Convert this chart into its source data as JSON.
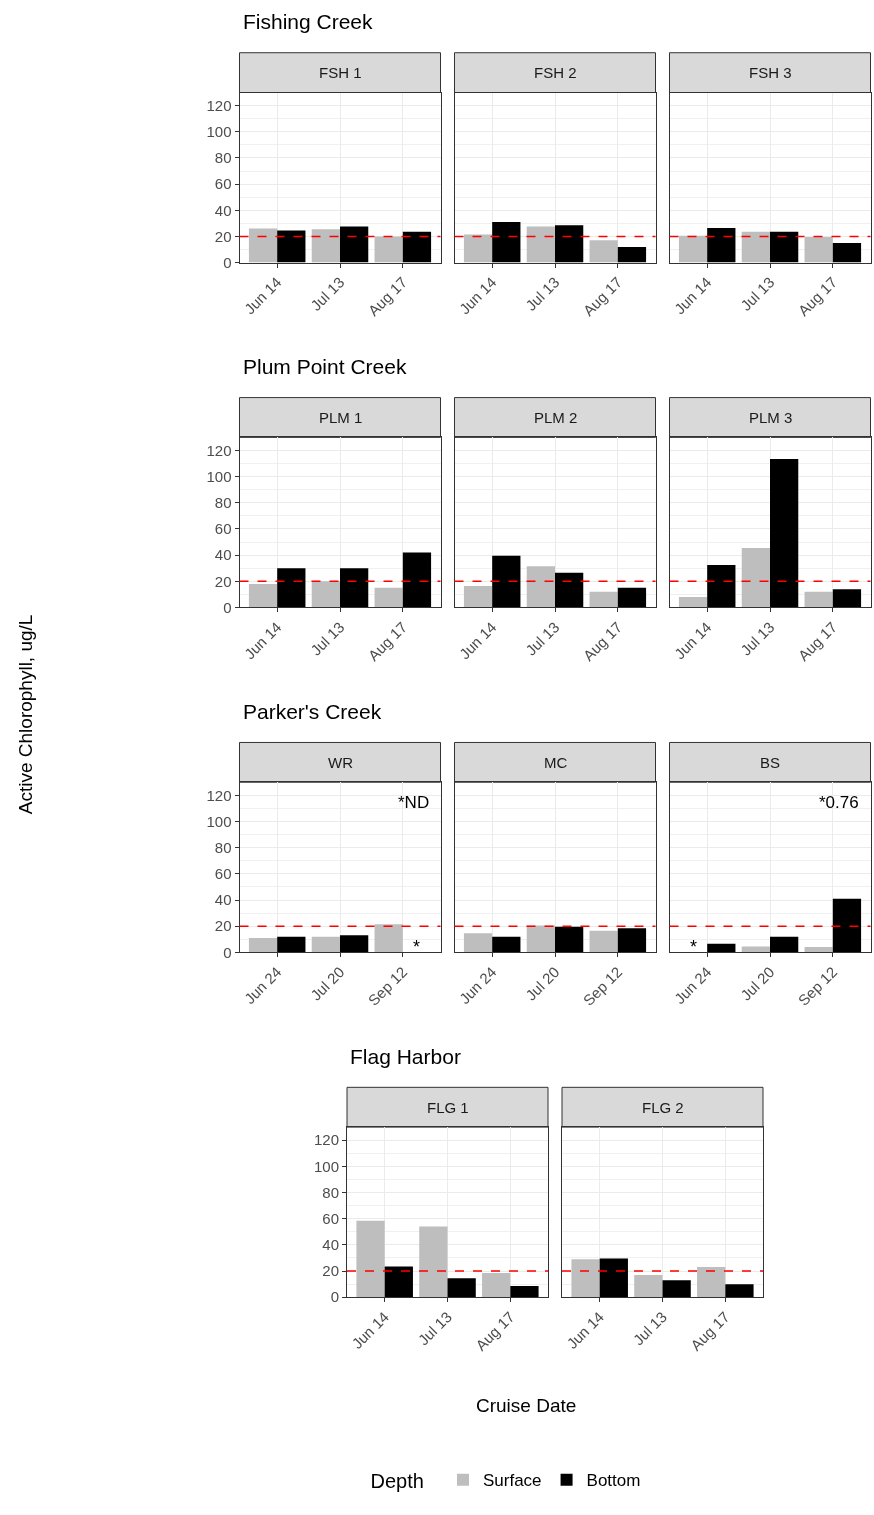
{
  "chart_data": [
    {
      "type": "bar",
      "title": "Fishing Creek",
      "subtitle": "FSH 1",
      "categories": [
        "Jun 14",
        "Jul 13",
        "Aug 17"
      ],
      "series": [
        {
          "color": "#bebebe",
          "values": [
            26,
            25.5,
            20
          ]
        },
        {
          "color": "#000000",
          "values": [
            24.5,
            27.5,
            23.5
          ]
        }
      ],
      "ylim": [
        0,
        130
      ],
      "yticks": [
        0,
        20,
        40,
        60,
        80,
        100,
        120
      ],
      "grid": true,
      "ref_lines": [
        {
          "axis": "y",
          "value": 20,
          "color": "#ff0000",
          "line_style": "dashed"
        }
      ]
    },
    {
      "type": "bar",
      "subtitle": "FSH 2",
      "categories": [
        "Jun 14",
        "Jul 13",
        "Aug 17"
      ],
      "series": [
        {
          "color": "#bebebe",
          "values": [
            21.5,
            27.5,
            17
          ]
        },
        {
          "color": "#000000",
          "values": [
            31,
            28.5,
            12
          ]
        }
      ],
      "ylim": [
        0,
        130
      ],
      "yticks": [
        0,
        20,
        40,
        60,
        80,
        100,
        120
      ],
      "grid": true,
      "tick_labels": "x",
      "ref_lines": [
        {
          "axis": "y",
          "value": 20,
          "color": "#ff0000",
          "line_style": "dashed"
        }
      ]
    },
    {
      "type": "bar",
      "subtitle": "FSH 3",
      "categories": [
        "Jun 14",
        "Jul 13",
        "Aug 17"
      ],
      "series": [
        {
          "color": "#bebebe",
          "values": [
            20.5,
            23.5,
            19.5
          ]
        },
        {
          "color": "#000000",
          "values": [
            26.5,
            23.5,
            15
          ]
        }
      ],
      "ylim": [
        0,
        130
      ],
      "yticks": [
        0,
        20,
        40,
        60,
        80,
        100,
        120
      ],
      "grid": true,
      "tick_labels": "x",
      "ref_lines": [
        {
          "axis": "y",
          "value": 20,
          "color": "#ff0000",
          "line_style": "dashed"
        }
      ]
    },
    {
      "type": "bar",
      "title": "Plum Point Creek",
      "subtitle": "PLM 1",
      "categories": [
        "Jun 14",
        "Jul 13",
        "Aug 17"
      ],
      "series": [
        {
          "color": "#bebebe",
          "values": [
            18,
            20,
            15
          ]
        },
        {
          "color": "#000000",
          "values": [
            30,
            30,
            42
          ]
        }
      ],
      "ylim": [
        0,
        130
      ],
      "yticks": [
        0,
        20,
        40,
        60,
        80,
        100,
        120
      ],
      "grid": true,
      "ref_lines": [
        {
          "axis": "y",
          "value": 20,
          "color": "#ff0000",
          "line_style": "dashed"
        }
      ]
    },
    {
      "type": "bar",
      "subtitle": "PLM 2",
      "categories": [
        "Jun 14",
        "Jul 13",
        "Aug 17"
      ],
      "series": [
        {
          "color": "#bebebe",
          "values": [
            16.5,
            31.5,
            12
          ]
        },
        {
          "color": "#000000",
          "values": [
            39.5,
            26.5,
            15
          ]
        }
      ],
      "ylim": [
        0,
        130
      ],
      "yticks": [
        0,
        20,
        40,
        60,
        80,
        100,
        120
      ],
      "grid": true,
      "tick_labels": "x",
      "ref_lines": [
        {
          "axis": "y",
          "value": 20,
          "color": "#ff0000",
          "line_style": "dashed"
        }
      ]
    },
    {
      "type": "bar",
      "subtitle": "PLM 3",
      "categories": [
        "Jun 14",
        "Jul 13",
        "Aug 17"
      ],
      "series": [
        {
          "color": "#bebebe",
          "values": [
            8,
            45.5,
            12
          ]
        },
        {
          "color": "#000000",
          "values": [
            32.5,
            113.5,
            14
          ]
        }
      ],
      "ylim": [
        0,
        130
      ],
      "yticks": [
        0,
        20,
        40,
        60,
        80,
        100,
        120
      ],
      "grid": true,
      "tick_labels": "x",
      "ref_lines": [
        {
          "axis": "y",
          "value": 20,
          "color": "#ff0000",
          "line_style": "dashed"
        }
      ]
    },
    {
      "type": "bar",
      "title": "Parker's Creek",
      "subtitle": "WR",
      "ylabel": "Active Chlorophyll, ug/L",
      "categories": [
        "Jun 24",
        "Jul 20",
        "Sep 12"
      ],
      "series": [
        {
          "color": "#bebebe",
          "values": [
            11,
            12,
            21.5
          ]
        },
        {
          "color": "#000000",
          "values": [
            12,
            13,
            null
          ]
        }
      ],
      "ylim": [
        0,
        130
      ],
      "yticks": [
        0,
        20,
        40,
        60,
        80,
        100,
        120
      ],
      "grid": true,
      "ref_lines": [
        {
          "axis": "y",
          "value": 20,
          "color": "#ff0000",
          "line_style": "dashed"
        }
      ],
      "annotations": [
        "*ND",
        {
          "text": "*",
          "x": "Sep 12",
          "y": 8
        }
      ]
    },
    {
      "type": "bar",
      "subtitle": "MC",
      "categories": [
        "Jun 24",
        "Jul 20",
        "Sep 12"
      ],
      "series": [
        {
          "color": "#bebebe",
          "values": [
            14.5,
            20.5,
            16.5
          ]
        },
        {
          "color": "#000000",
          "values": [
            12,
            19.5,
            18.5
          ]
        }
      ],
      "ylim": [
        0,
        130
      ],
      "yticks": [
        0,
        20,
        40,
        60,
        80,
        100,
        120
      ],
      "grid": true,
      "tick_labels": "x",
      "ref_lines": [
        {
          "axis": "y",
          "value": 20,
          "color": "#ff0000",
          "line_style": "dashed"
        }
      ]
    },
    {
      "type": "bar",
      "subtitle": "BS",
      "categories": [
        "Jun 24",
        "Jul 20",
        "Sep 12"
      ],
      "series": [
        {
          "color": "#bebebe",
          "values": [
            null,
            4.5,
            4
          ]
        },
        {
          "color": "#000000",
          "values": [
            6.5,
            12,
            41
          ]
        }
      ],
      "ylim": [
        0,
        130
      ],
      "yticks": [
        0,
        20,
        40,
        60,
        80,
        100,
        120
      ],
      "grid": true,
      "tick_labels": "x",
      "ref_lines": [
        {
          "axis": "y",
          "value": 20,
          "color": "#ff0000",
          "line_style": "dashed"
        }
      ],
      "annotations": [
        "*0.76",
        {
          "text": "*",
          "x": "Jun 24",
          "y": 8
        }
      ]
    },
    {
      "type": "bar",
      "title": "Flag Harbor",
      "subtitle": "FLG 1",
      "categories": [
        "Jun 14",
        "Jul 13",
        "Aug 17"
      ],
      "series": [
        {
          "color": "#bebebe",
          "values": [
            58.5,
            54,
            18.5
          ]
        },
        {
          "color": "#000000",
          "values": [
            23.5,
            14.5,
            8.5
          ]
        }
      ],
      "ylim": [
        0,
        130
      ],
      "yticks": [
        0,
        20,
        40,
        60,
        80,
        100,
        120
      ],
      "grid": true,
      "ref_lines": [
        {
          "axis": "y",
          "value": 20,
          "color": "#ff0000",
          "line_style": "dashed"
        }
      ]
    },
    {
      "type": "bar",
      "subtitle": "FLG 2",
      "xlabel": "Cruise Date",
      "legend": "bottom",
      "legend_title": "Depth",
      "categories": [
        "Jun 14",
        "Jul 13",
        "Aug 17"
      ],
      "series": [
        {
          "name": "Surface",
          "color": "#bebebe",
          "values": [
            29,
            17,
            23
          ]
        },
        {
          "name": "Bottom",
          "color": "#000000",
          "values": [
            29.5,
            13,
            10
          ]
        }
      ],
      "ylim": [
        0,
        130
      ],
      "yticks": [
        0,
        20,
        40,
        60,
        80,
        100,
        120
      ],
      "grid": true,
      "tick_labels": "x",
      "ref_lines": [
        {
          "axis": "y",
          "value": 20,
          "color": "#ff0000",
          "line_style": "dashed"
        }
      ]
    }
  ]
}
